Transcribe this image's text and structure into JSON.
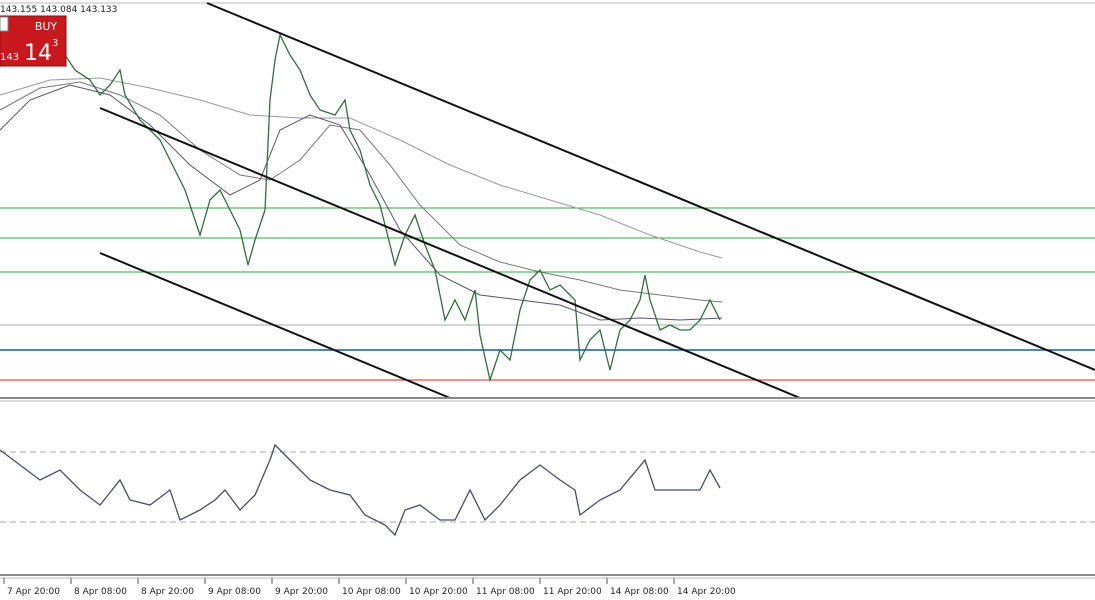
{
  "header": {
    "quote": "143.155 143.084 143.133"
  },
  "trade_panel": {
    "button": "BUY",
    "price_small": "143",
    "price_big": "14",
    "price_sup": "3"
  },
  "time_axis": {
    "labels": [
      "7 Apr 20:00",
      "8 Apr 08:00",
      "8 Apr 20:00",
      "9 Apr 08:00",
      "9 Apr 20:00",
      "10 Apr 08:00",
      "10 Apr 20:00",
      "11 Apr 08:00",
      "11 Apr 20:00",
      "14 Apr 08:00",
      "14 Apr 20:00"
    ]
  }
}
